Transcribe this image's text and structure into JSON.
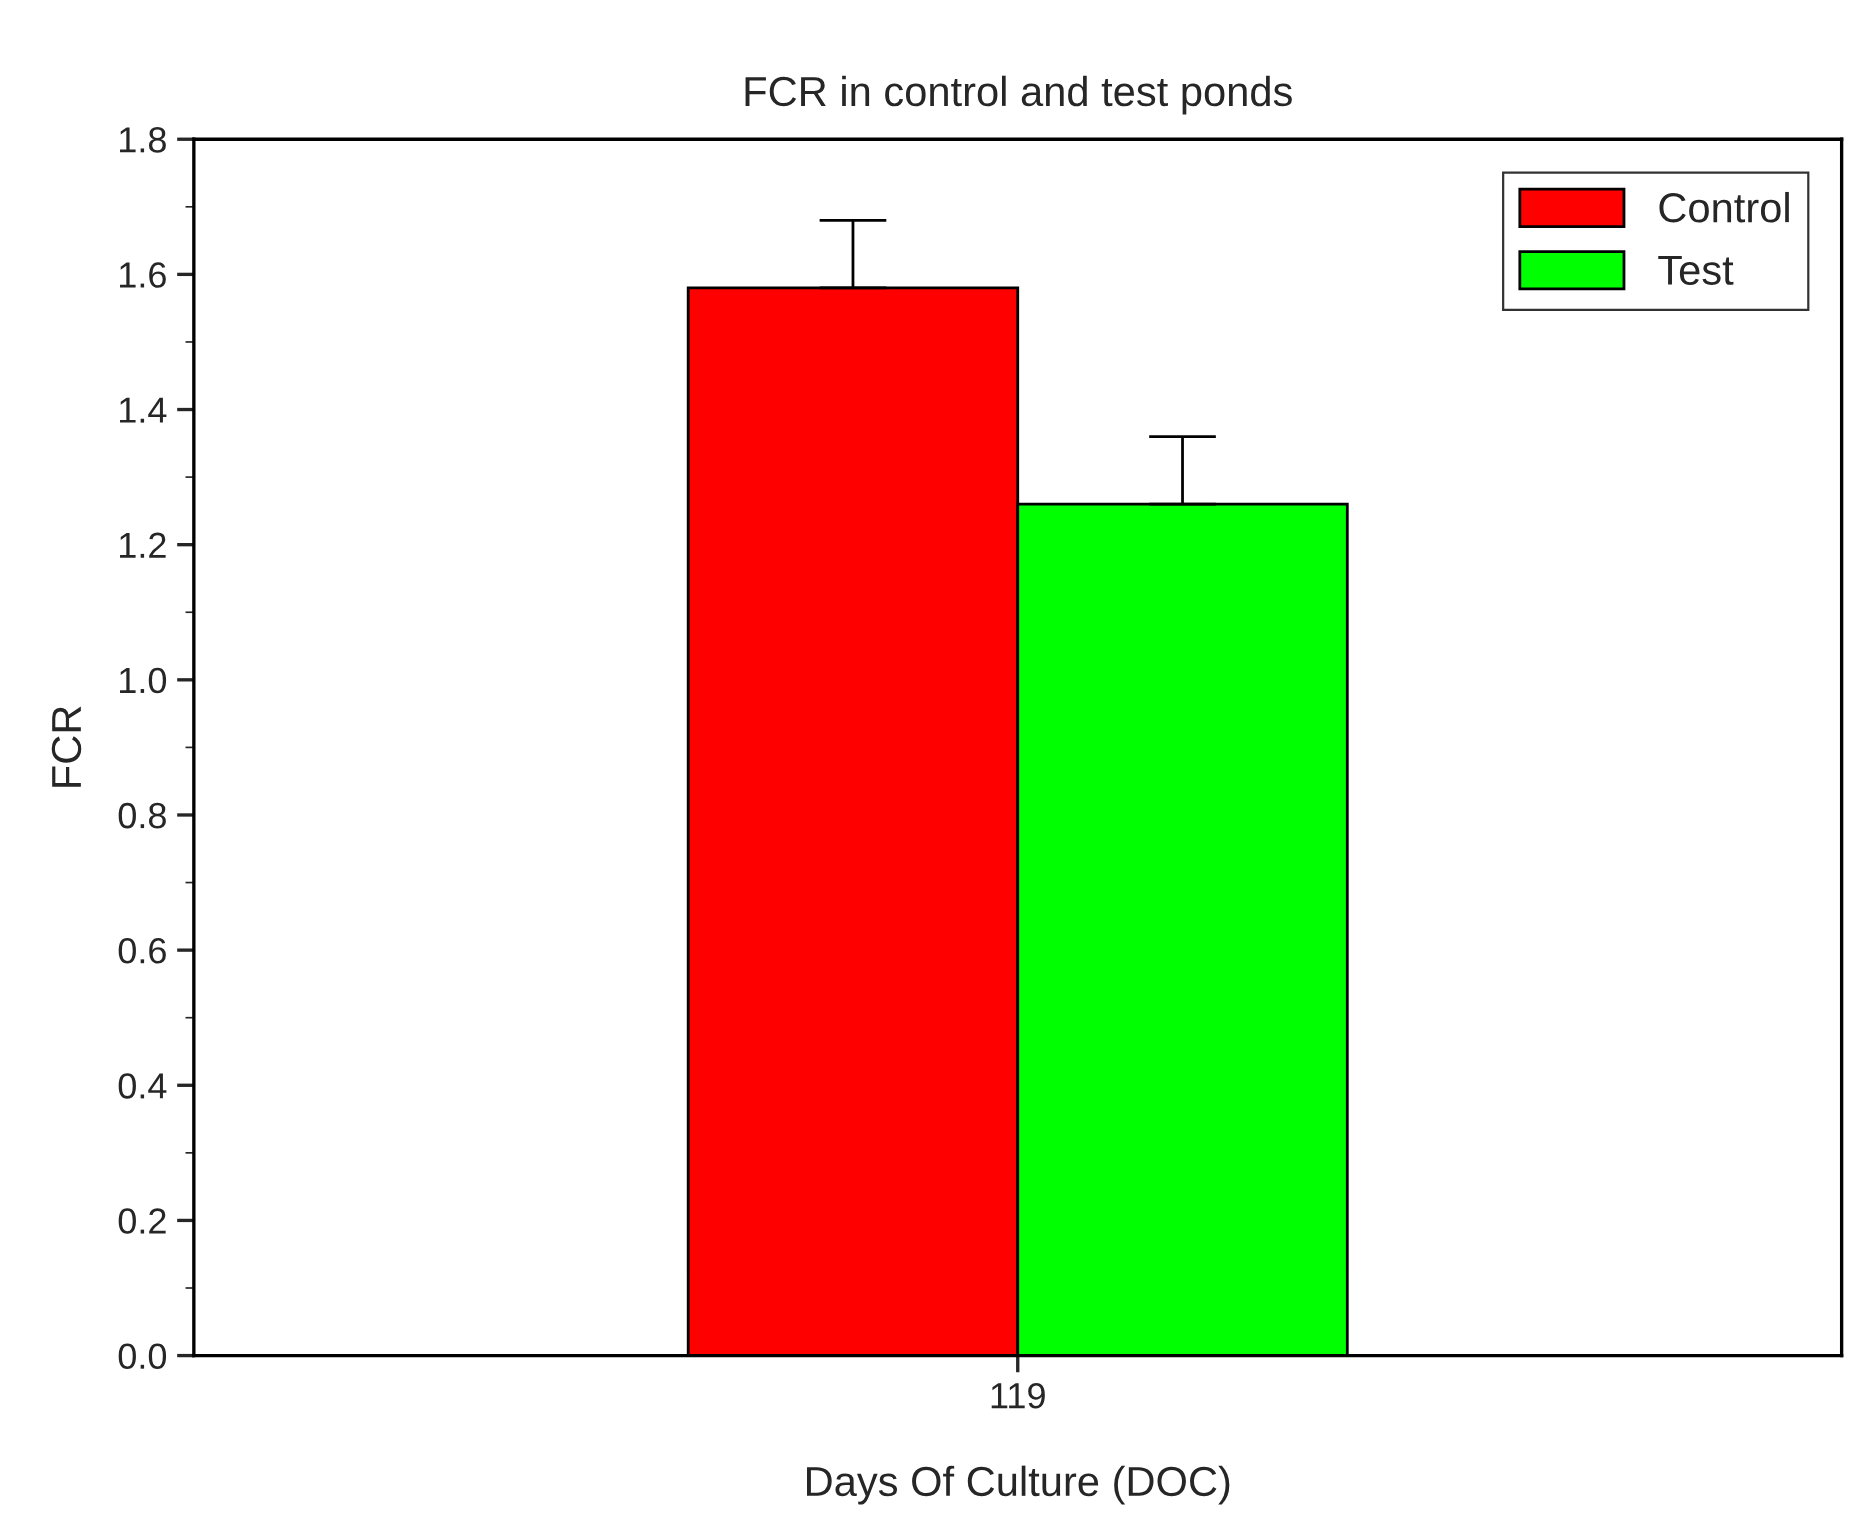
{
  "chart_data": {
    "type": "bar",
    "title": "FCR in control and test ponds",
    "xlabel": "Days Of Culture (DOC)",
    "ylabel": "FCR",
    "categories": [
      "119"
    ],
    "series": [
      {
        "name": "Control",
        "color": "#ff0000",
        "values": [
          1.58
        ],
        "errors": [
          [
            1.58,
            1.68
          ]
        ]
      },
      {
        "name": "Test",
        "color": "#00ff00",
        "values": [
          1.26
        ],
        "errors": [
          [
            1.26,
            1.36
          ]
        ]
      }
    ],
    "ylim": [
      0,
      1.8
    ],
    "yticks": [
      {
        "value": 0,
        "label": "0.0"
      },
      {
        "value": 0.2,
        "label": "0.2"
      },
      {
        "value": 0.4,
        "label": "0.4"
      },
      {
        "value": 0.6,
        "label": "0.6"
      },
      {
        "value": 0.8,
        "label": "0.8"
      },
      {
        "value": 1.0,
        "label": "1.0"
      },
      {
        "value": 1.2,
        "label": "1.2"
      },
      {
        "value": 1.4,
        "label": "1.4"
      },
      {
        "value": 1.6,
        "label": "1.6"
      },
      {
        "value": 1.8,
        "label": "1.8"
      }
    ],
    "grid": false,
    "legend": "top right"
  }
}
